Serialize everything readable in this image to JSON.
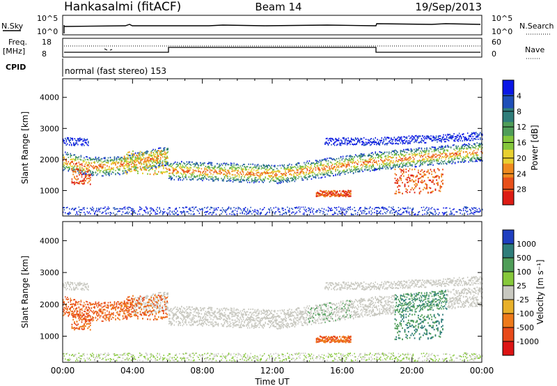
{
  "header": {
    "radar": "Hankasalmi (fitACF)",
    "beam": "Beam 14",
    "date": "19/Sep/2013"
  },
  "top_panels": {
    "nsky_label": "N.Sky",
    "nsearch_label": "N.Search",
    "nsky_ticks": [
      "10^5",
      "10^0"
    ],
    "nsearch_ticks": [
      "10^5",
      "10^0"
    ],
    "freq_label": "Freq.",
    "freq_unit": "[MHz]",
    "freq_ticks": [
      "18",
      "8"
    ],
    "nave_label": "Nave",
    "nave_ticks": [
      "60",
      "0"
    ],
    "cpid_label": "CPID",
    "cpid_text": "normal (fast stereo) 153"
  },
  "chart_data": [
    {
      "type": "heatmap",
      "name": "power",
      "ylabel": "Slant Range [km]",
      "yticks": [
        1000,
        2000,
        3000,
        4000
      ],
      "ylim": [
        180,
        4600
      ],
      "xlim": [
        0,
        24
      ],
      "colorbar": {
        "label": "Power [dB]",
        "ticks": [
          "4",
          "8",
          "12",
          "16",
          "20",
          "24",
          "28"
        ],
        "colors": [
          "#0a16e6",
          "#1f4fb8",
          "#2f7d7a",
          "#4f9d58",
          "#84c63c",
          "#e8d030",
          "#ef8a1e",
          "#e8501a",
          "#dd1c14"
        ]
      }
    },
    {
      "type": "heatmap",
      "name": "velocity",
      "ylabel": "Slant Range [km]",
      "yticks": [
        1000,
        2000,
        3000,
        4000
      ],
      "ylim": [
        180,
        4600
      ],
      "xlim": [
        0,
        24
      ],
      "xlabel": "Time UT",
      "xticks": [
        "00:00",
        "04:00",
        "08:00",
        "12:00",
        "16:00",
        "20:00",
        "00:00"
      ],
      "colorbar": {
        "label": "Velocity [m s⁻¹]",
        "ticks": [
          "1000",
          "500",
          "100",
          "25",
          "-25",
          "-100",
          "-500",
          "-1000"
        ],
        "colors": [
          "#1f3fc0",
          "#2f7d7a",
          "#4f9d58",
          "#86c83a",
          "#c8c8c0",
          "#e8b02a",
          "#ee7a1a",
          "#e84a1a",
          "#dd1414"
        ]
      }
    }
  ]
}
